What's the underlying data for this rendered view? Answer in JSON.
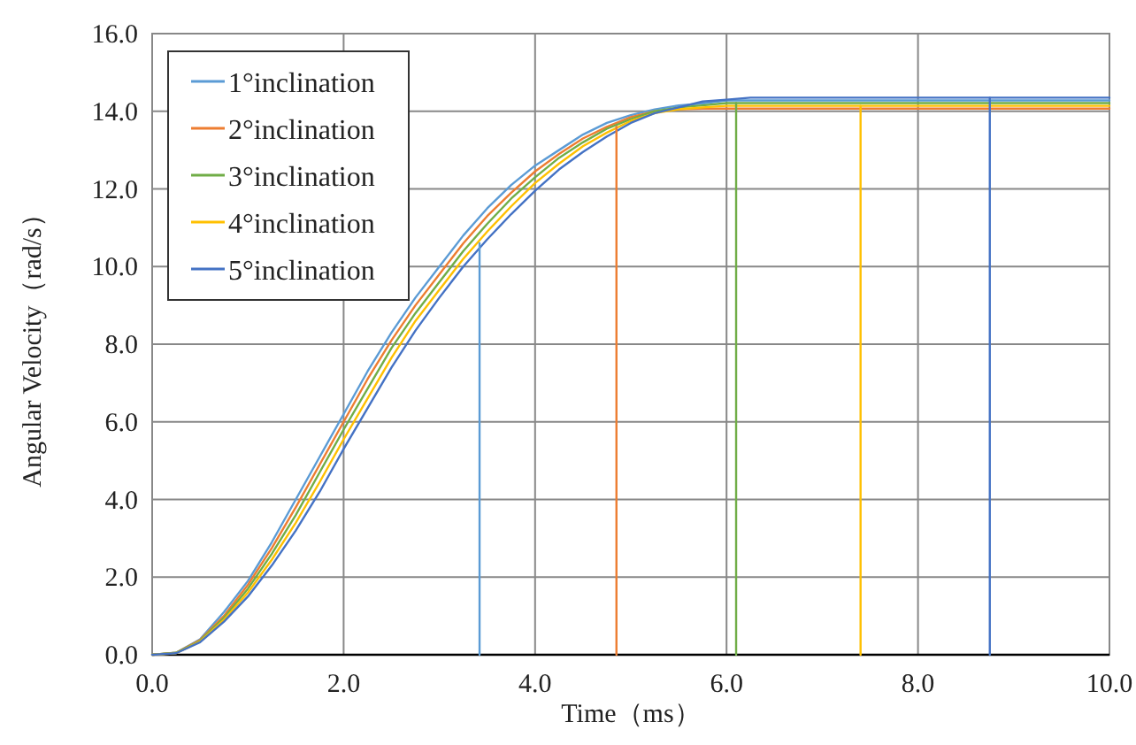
{
  "chart_data": {
    "type": "line",
    "xlabel": "Time（ms）",
    "ylabel": "Angular Velocity（rad/s）",
    "xlim": [
      0,
      10
    ],
    "ylim": [
      0,
      16
    ],
    "xticks": [
      {
        "value": 0,
        "label": "0.0"
      },
      {
        "value": 2,
        "label": "2.0"
      },
      {
        "value": 4,
        "label": "4.0"
      },
      {
        "value": 6,
        "label": "6.0"
      },
      {
        "value": 8,
        "label": "8.0"
      },
      {
        "value": 10,
        "label": "10.0"
      }
    ],
    "yticks": [
      {
        "value": 0,
        "label": "0.0"
      },
      {
        "value": 2,
        "label": "2.0"
      },
      {
        "value": 4,
        "label": "4.0"
      },
      {
        "value": 6,
        "label": "6.0"
      },
      {
        "value": 8,
        "label": "8.0"
      },
      {
        "value": 10,
        "label": "10.0"
      },
      {
        "value": 12,
        "label": "12.0"
      },
      {
        "value": 14,
        "label": "14.0"
      },
      {
        "value": 16,
        "label": "16.0"
      }
    ],
    "grid": true,
    "legend": "top left",
    "x": [
      0,
      0.25,
      0.5,
      0.75,
      1,
      1.25,
      1.5,
      1.75,
      2,
      2.25,
      2.5,
      2.75,
      3,
      3.25,
      3.5,
      3.75,
      4,
      4.25,
      4.5,
      4.75,
      5,
      5.25,
      5.5,
      5.75,
      6,
      6.25,
      10
    ],
    "series": [
      {
        "name": "1°inclination",
        "color": "#5b9bd5",
        "values": [
          0,
          0.05,
          0.4,
          1.1,
          1.9,
          2.9,
          4.0,
          5.1,
          6.2,
          7.3,
          8.3,
          9.2,
          10.0,
          10.8,
          11.5,
          12.1,
          12.6,
          13.0,
          13.4,
          13.7,
          13.9,
          14.05,
          14.15,
          14.2,
          14.28,
          14.28,
          14.28
        ]
      },
      {
        "name": "2°inclination",
        "color": "#ed7d31",
        "values": [
          0,
          0.05,
          0.38,
          1.0,
          1.8,
          2.75,
          3.8,
          4.9,
          6.0,
          7.1,
          8.1,
          9.0,
          9.8,
          10.6,
          11.3,
          11.9,
          12.45,
          12.9,
          13.3,
          13.6,
          13.85,
          14.0,
          14.05,
          14.07,
          14.07,
          14.07,
          14.07
        ]
      },
      {
        "name": "3°inclination",
        "color": "#70ad47",
        "values": [
          0,
          0.05,
          0.36,
          0.95,
          1.7,
          2.6,
          3.6,
          4.7,
          5.8,
          6.85,
          7.9,
          8.8,
          9.6,
          10.4,
          11.1,
          11.75,
          12.3,
          12.8,
          13.2,
          13.55,
          13.8,
          14.0,
          14.1,
          14.15,
          14.21,
          14.21,
          14.21
        ]
      },
      {
        "name": "4°inclination",
        "color": "#ffc000",
        "values": [
          0,
          0.04,
          0.34,
          0.9,
          1.6,
          2.45,
          3.4,
          4.45,
          5.55,
          6.6,
          7.65,
          8.6,
          9.4,
          10.2,
          10.9,
          11.55,
          12.15,
          12.65,
          13.1,
          13.45,
          13.75,
          13.95,
          14.05,
          14.1,
          14.14,
          14.14,
          14.14
        ]
      },
      {
        "name": "5°inclination",
        "color": "#4472c4",
        "values": [
          0,
          0.04,
          0.32,
          0.85,
          1.5,
          2.3,
          3.2,
          4.2,
          5.3,
          6.35,
          7.4,
          8.35,
          9.2,
          10.0,
          10.7,
          11.35,
          11.95,
          12.5,
          12.95,
          13.35,
          13.7,
          13.95,
          14.1,
          14.25,
          14.3,
          14.35,
          14.35
        ]
      },
      {
        "color": "#5b9bd5",
        "x": [
          3.42,
          3.42
        ],
        "values": [
          10.6,
          0
        ]
      },
      {
        "color": "#ed7d31",
        "x": [
          4.85,
          4.85
        ],
        "values": [
          13.6,
          0
        ]
      },
      {
        "color": "#70ad47",
        "x": [
          6.1,
          6.1
        ],
        "values": [
          14.21,
          0
        ]
      },
      {
        "color": "#ffc000",
        "x": [
          7.4,
          7.4
        ],
        "values": [
          14.14,
          0
        ]
      },
      {
        "color": "#4472c4",
        "x": [
          8.75,
          8.75
        ],
        "values": [
          14.35,
          0
        ]
      }
    ]
  }
}
